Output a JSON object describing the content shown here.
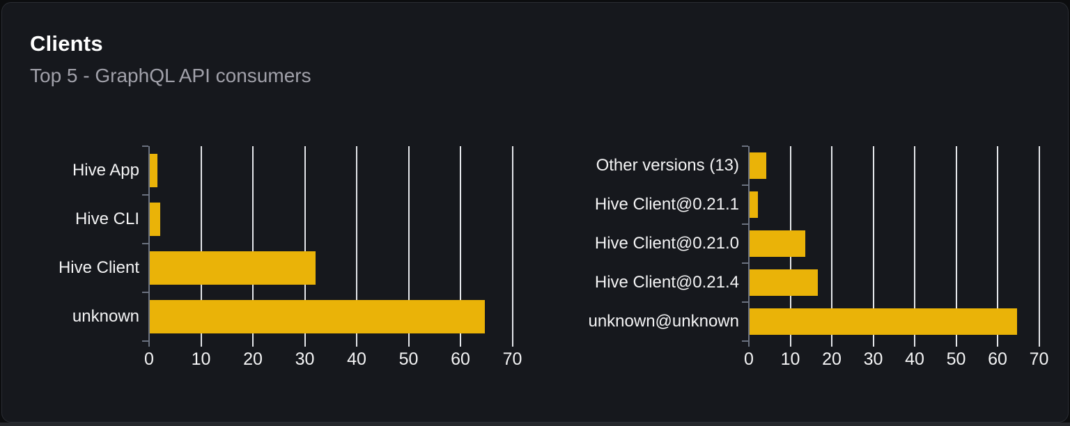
{
  "card": {
    "title": "Clients",
    "subtitle": "Top 5 - GraphQL API consumers"
  },
  "colors": {
    "page_bg": "#0c0d0f",
    "card_bg": "#16181d",
    "card_border": "#2a2d33",
    "bottom_strip": "#26282c",
    "bar": "#eab308",
    "gridline": "#e5e7eb",
    "axis": "#6b7280",
    "title_text": "#ffffff",
    "subtitle_text": "#a1a1aa",
    "label_text": "#f4f4f5"
  },
  "chart_data": [
    {
      "id": "top-clients",
      "type": "bar",
      "orientation": "horizontal",
      "title": "",
      "categories": [
        "Hive App",
        "Hive CLI",
        "Hive Client",
        "unknown"
      ],
      "values": [
        1.5,
        2,
        32,
        64.5
      ],
      "xticks": [
        0,
        10,
        20,
        30,
        40,
        50,
        60,
        70
      ],
      "xlim": [
        0,
        70
      ],
      "grid": true,
      "legend": false
    },
    {
      "id": "top-client-versions",
      "type": "bar",
      "orientation": "horizontal",
      "title": "",
      "categories": [
        "Other versions (13)",
        "Hive Client@0.21.1",
        "Hive Client@0.21.0",
        "Hive Client@0.21.4",
        "unknown@unknown"
      ],
      "values": [
        4,
        2,
        13.5,
        16.5,
        64.5
      ],
      "xticks": [
        0,
        10,
        20,
        30,
        40,
        50,
        60,
        70
      ],
      "xlim": [
        0,
        70
      ],
      "grid": true,
      "legend": false
    }
  ]
}
